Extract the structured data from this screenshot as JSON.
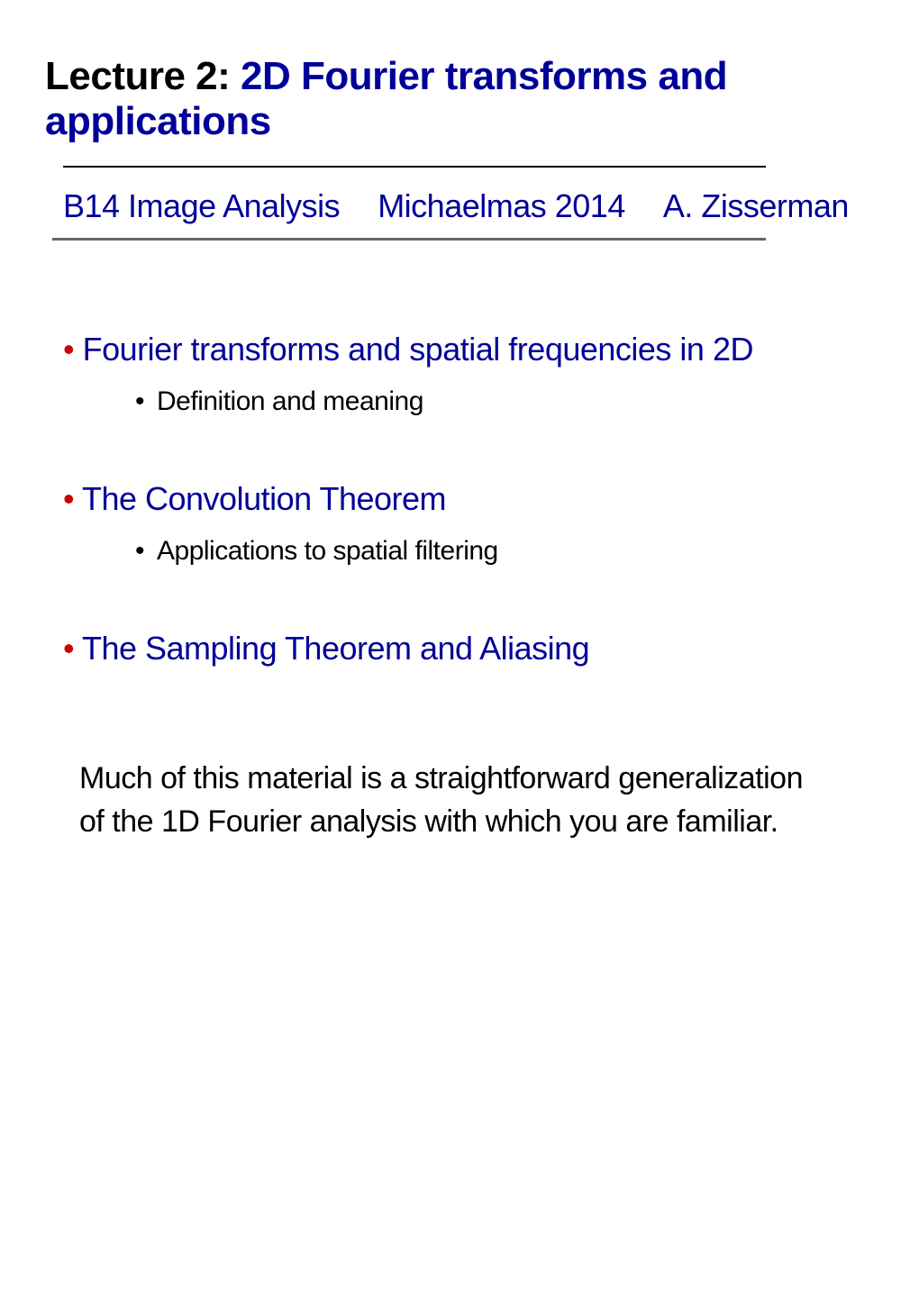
{
  "title": {
    "prefix": "Lecture 2: ",
    "main": "2D Fourier transforms and applications"
  },
  "subtitle": {
    "course": "B14 Image Analysis",
    "term": "Michaelmas 2014",
    "author": "A. Zisserman"
  },
  "sections": [
    {
      "heading": "Fourier transforms and spatial frequencies in 2D",
      "subitems": [
        "Definition and meaning"
      ]
    },
    {
      "heading": "The Convolution Theorem",
      "subitems": [
        "Applications to spatial filtering"
      ]
    },
    {
      "heading": "The Sampling Theorem and Aliasing",
      "subitems": []
    }
  ],
  "footnote": "Much of this material is a straightforward generalization of the 1D Fourier analysis with which you are familiar.",
  "colors": {
    "heading_blue": "#000099",
    "bullet_red": "#cc0000",
    "text_black": "#000000",
    "divider_grey": "#666666",
    "background": "#ffffff"
  },
  "typography": {
    "title_fontsize": 44,
    "subtitle_fontsize": 36,
    "bullet_fontsize": 36,
    "subbullet_fontsize": 30,
    "footnote_fontsize": 34
  }
}
